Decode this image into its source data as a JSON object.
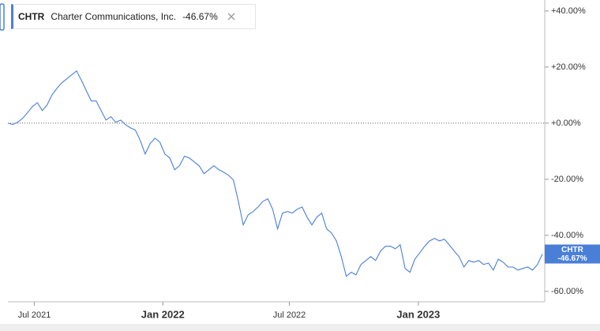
{
  "chart_data": {
    "type": "line",
    "series": [
      {
        "name": "CHTR",
        "description": "Charter Communications, Inc.",
        "color": "#4a7fd8",
        "change": {
          "value": -46.67,
          "label": "-46.67%"
        },
        "values": [
          0,
          -0.5,
          0.3,
          1.7,
          3.7,
          5.9,
          7.3,
          4.5,
          6.5,
          10.1,
          12.4,
          14.4,
          15.8,
          17.2,
          18.6,
          15.2,
          11.5,
          7.9,
          7.9,
          4.5,
          1.1,
          2.3,
          0.3,
          1.1,
          -0.6,
          -1.7,
          -2.5,
          -6.2,
          -11,
          -7.3,
          -5.4,
          -6.8,
          -11,
          -12.4,
          -16.6,
          -15.2,
          -11.8,
          -12.4,
          -13.8,
          -15.2,
          -18,
          -16.6,
          -15.2,
          -16.6,
          -17.5,
          -18.6,
          -20.3,
          -27.9,
          -36.3,
          -32.7,
          -31.5,
          -29.9,
          -27.9,
          -27,
          -30.7,
          -37.7,
          -32.1,
          -31.5,
          -32.1,
          -30.7,
          -29.9,
          -33.5,
          -36.3,
          -33.5,
          -32.1,
          -37.7,
          -39.2,
          -42,
          -47.6,
          -54.6,
          -53.2,
          -54.1,
          -50.4,
          -49,
          -47.6,
          -49,
          -45.6,
          -43.9,
          -43.9,
          -44.8,
          -43.4,
          -51.8,
          -53.2,
          -48.5,
          -46.2,
          -43.9,
          -42,
          -41.1,
          -42,
          -41.4,
          -43.4,
          -45.6,
          -47.6,
          -51.3,
          -49,
          -49.6,
          -49,
          -50.4,
          -49.9,
          -52.4,
          -48.5,
          -49.6,
          -51.3,
          -51.3,
          -52.4,
          -51.8,
          -51.3,
          -52.4,
          -50.4,
          -46.67
        ]
      }
    ],
    "x": [
      0,
      1,
      2,
      3,
      4,
      5,
      6,
      7,
      8,
      9,
      10,
      11,
      12,
      13,
      14,
      15,
      16,
      17,
      18,
      19,
      20,
      21,
      22,
      23,
      24,
      25,
      26,
      27,
      28,
      29,
      30,
      31,
      32,
      33,
      34,
      35,
      36,
      37,
      38,
      39,
      40,
      41,
      42,
      43,
      44,
      45,
      46,
      47,
      48,
      49,
      50,
      51,
      52,
      53,
      54,
      55,
      56,
      57,
      58,
      59,
      60,
      61,
      62,
      63,
      64,
      65,
      66,
      67,
      68,
      69,
      70,
      71,
      72,
      73,
      74,
      75,
      76,
      77,
      78,
      79,
      80,
      81,
      82,
      83,
      84,
      85,
      86,
      87,
      88,
      89,
      90,
      91,
      92,
      93,
      94,
      95,
      96,
      97,
      98,
      99,
      100,
      101,
      102,
      103,
      104,
      105,
      106,
      107,
      108,
      109
    ],
    "xlim": [
      0,
      109
    ],
    "xticks": [
      {
        "value": 5.4,
        "label": "Jul 2021"
      },
      {
        "value": 31.6,
        "label": "Jan 2022"
      },
      {
        "value": 57.4,
        "label": "Jul 2022"
      },
      {
        "value": 83.7,
        "label": "Jan 2023"
      }
    ],
    "ylim": [
      -63.7,
      42.5
    ],
    "yticks": [
      {
        "value": 40,
        "label": "+40.00%"
      },
      {
        "value": 20,
        "label": "+20.00%"
      },
      {
        "value": 0,
        "label": "+0.00%"
      },
      {
        "value": -20,
        "label": "-20.00%"
      },
      {
        "value": -40,
        "label": "-40.00%"
      },
      {
        "value": -60,
        "label": "-60.00%"
      }
    ]
  }
}
